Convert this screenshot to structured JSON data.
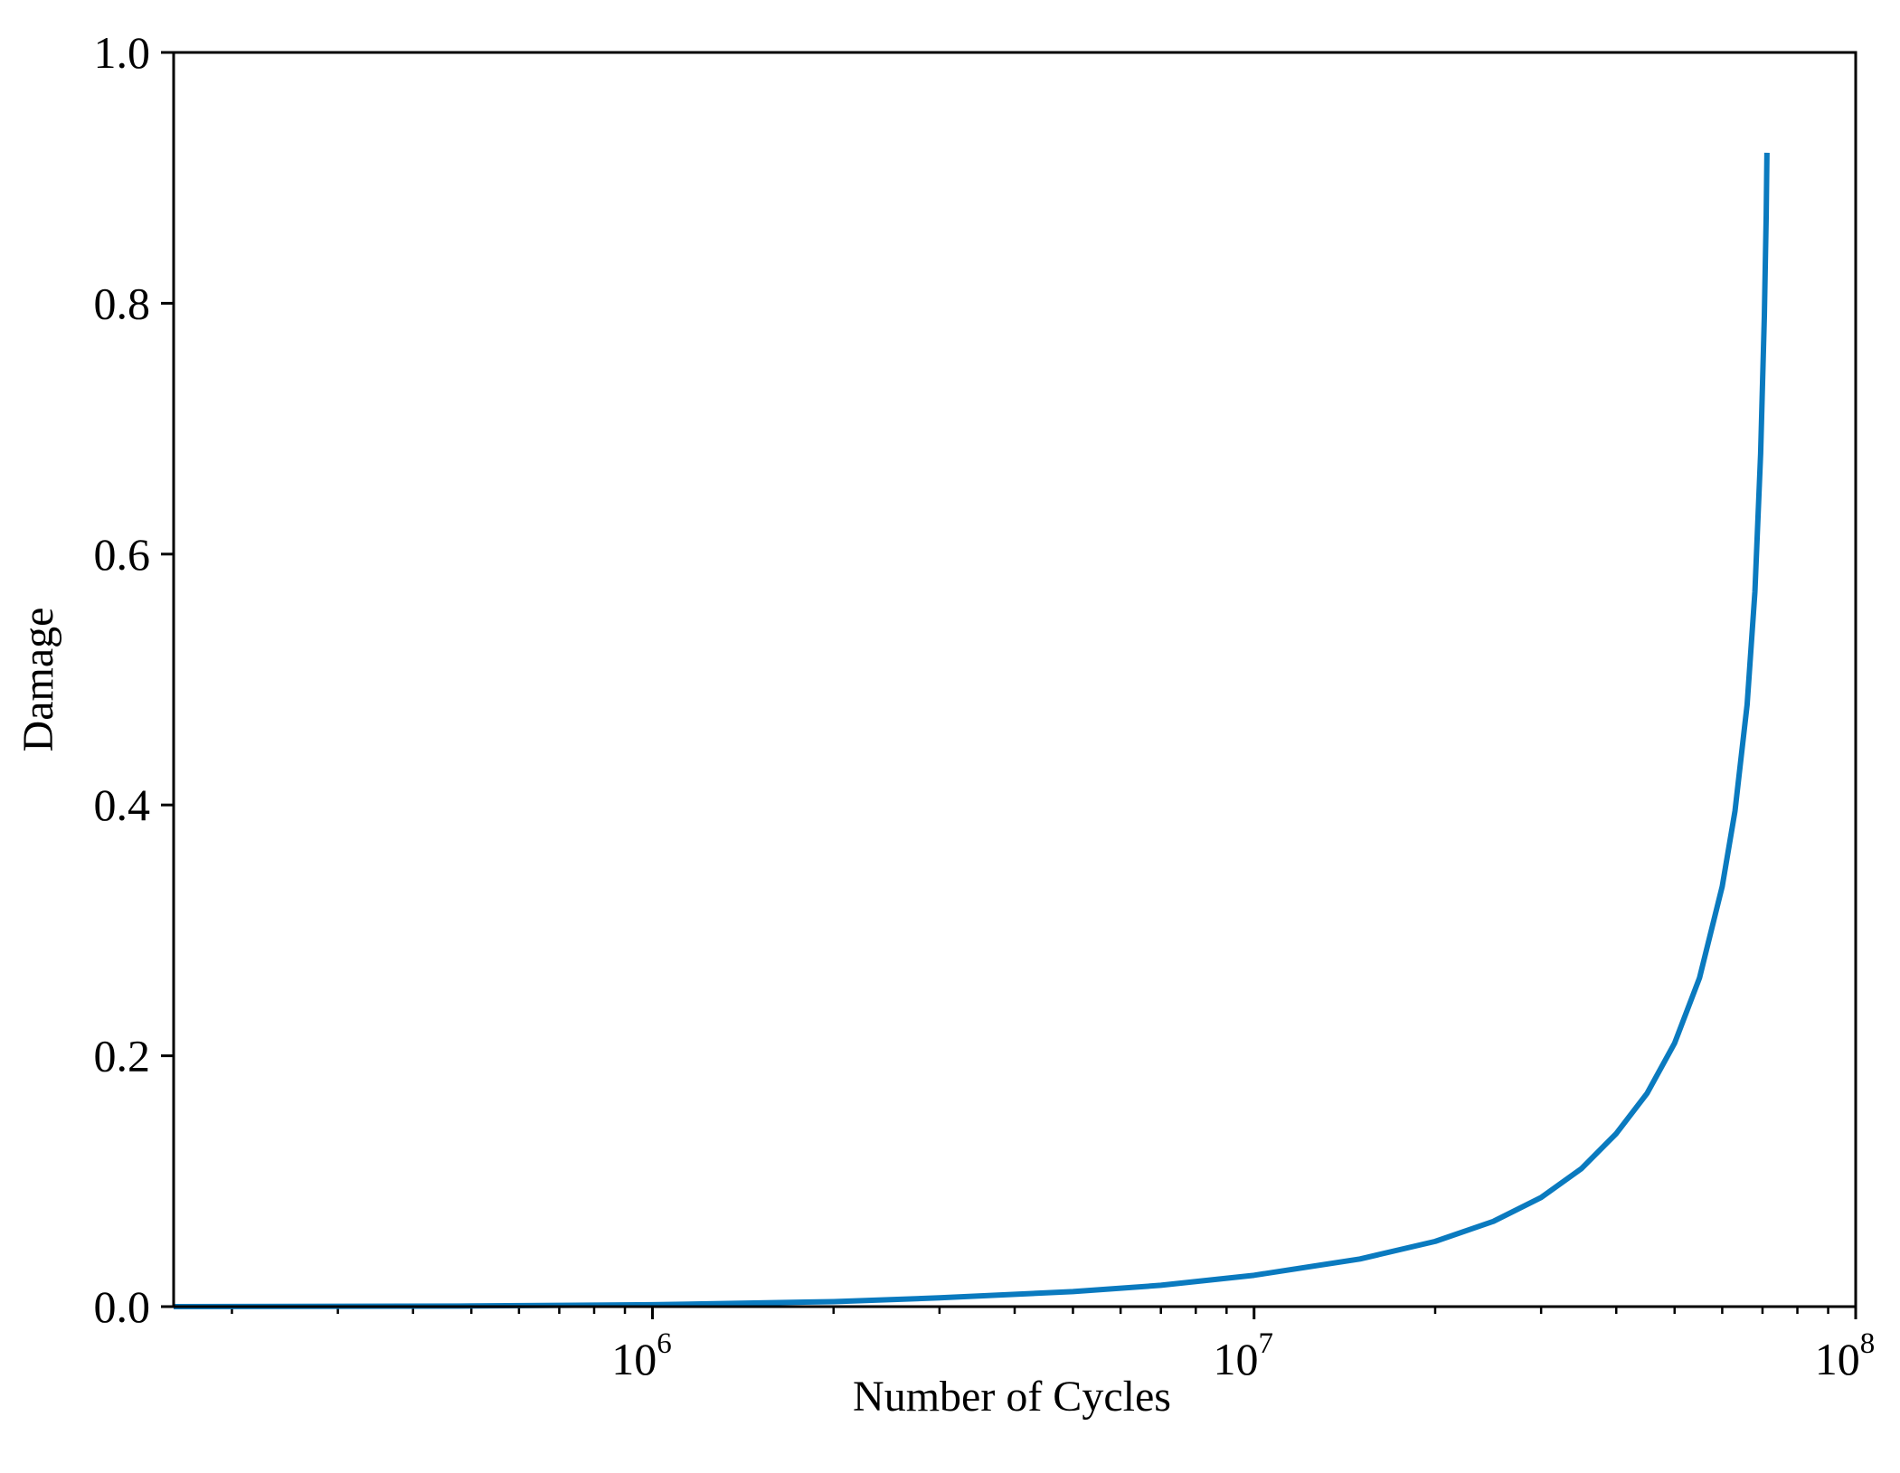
{
  "chart_data": {
    "type": "line",
    "title": "",
    "xlabel": "Number of Cycles",
    "ylabel": "Damage",
    "xscale": "log",
    "xlim": [
      160000,
      100000000
    ],
    "ylim": [
      0.0,
      1.0
    ],
    "grid": false,
    "legend": "none",
    "line_color": "#0a7abf",
    "y_ticks": [
      "0.0",
      "0.2",
      "0.4",
      "0.6",
      "0.8",
      "1.0"
    ],
    "x_ticks": [
      {
        "base": "10",
        "exp": "6",
        "value": 1000000
      },
      {
        "base": "10",
        "exp": "7",
        "value": 10000000
      },
      {
        "base": "10",
        "exp": "8",
        "value": 100000000
      }
    ],
    "series": [
      {
        "x": [
          160000,
          500000,
          1000000,
          2000000,
          3000000,
          5000000,
          7000000,
          10000000,
          15000000,
          20000000,
          25000000,
          30000000,
          35000000,
          40000000,
          45000000,
          50000000,
          55000000,
          60000000,
          63000000,
          66000000,
          68000000,
          69500000,
          70500000,
          71000000,
          71200000
        ],
        "y": [
          0.0,
          0.0005,
          0.0015,
          0.004,
          0.007,
          0.012,
          0.017,
          0.025,
          0.038,
          0.052,
          0.068,
          0.087,
          0.11,
          0.138,
          0.17,
          0.21,
          0.262,
          0.335,
          0.395,
          0.48,
          0.57,
          0.68,
          0.79,
          0.87,
          0.92
        ]
      }
    ]
  }
}
